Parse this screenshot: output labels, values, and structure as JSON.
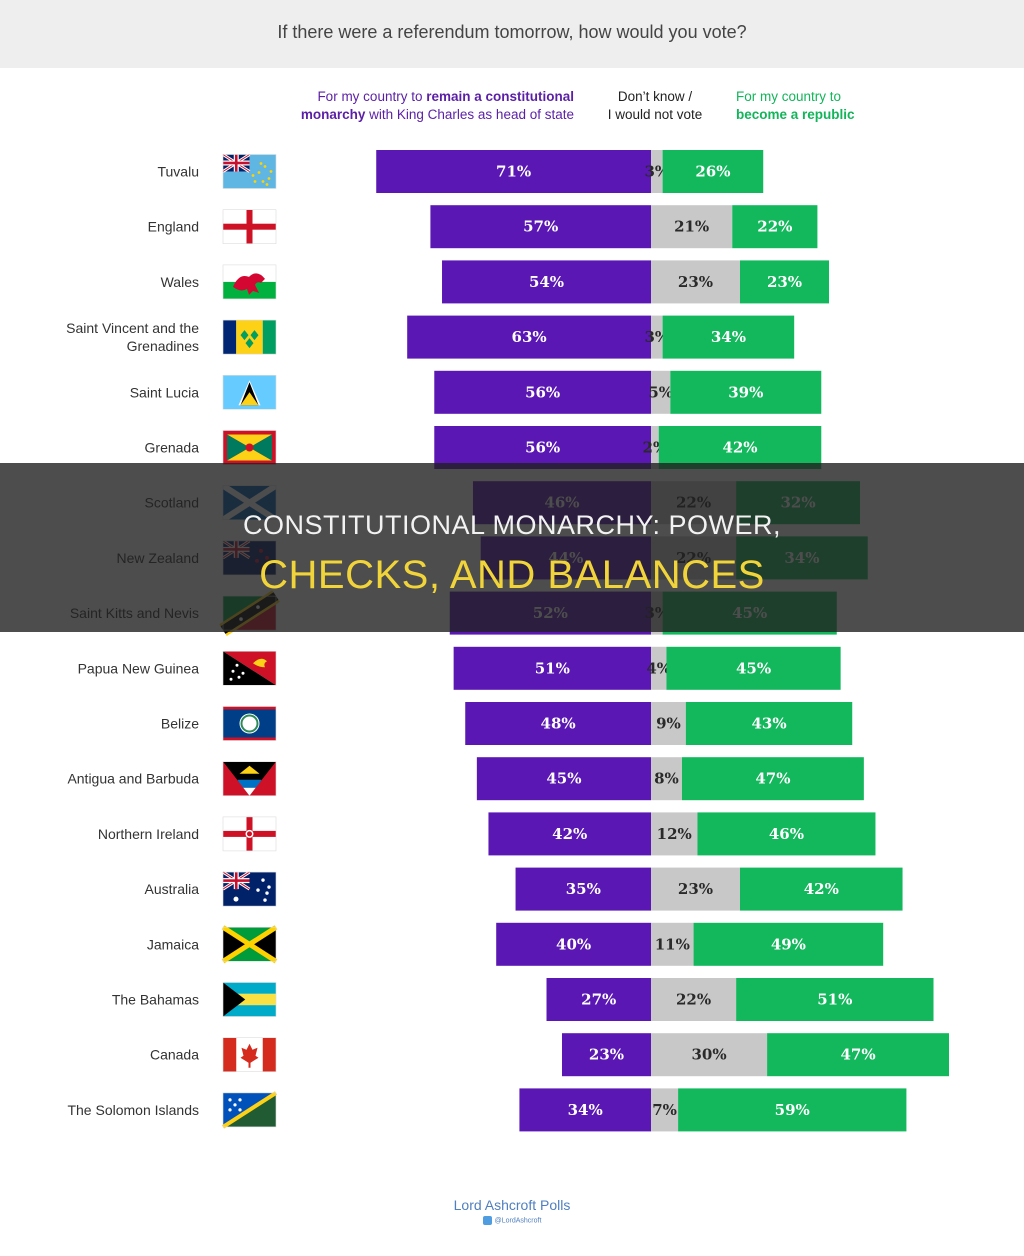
{
  "question": "If there were a referendum tomorrow, how would you vote?",
  "headers": {
    "monarchy": {
      "l1_a": "For my country to ",
      "l1_b": "remain a constitutional",
      "l2_a": "monarchy",
      "l2_b": " with King Charles as head of state"
    },
    "dont_know": {
      "l1": "Don’t know /",
      "l2": "I would not vote"
    },
    "republic": {
      "l1": "For my country to",
      "l2": "become a republic"
    }
  },
  "colors": {
    "monarchy": "#5a17b3",
    "dont_know": "#c8c8c8",
    "republic": "#12b85b"
  },
  "chart_data": {
    "type": "bar",
    "stacked": true,
    "orientation": "horizontal",
    "title": "If there were a referendum tomorrow, how would you vote?",
    "categories": [
      "Tuvalu",
      "England",
      "Wales",
      "Saint Vincent and the Grenadines",
      "Saint Lucia",
      "Grenada",
      "Scotland",
      "New Zealand",
      "Saint Kitts and Nevis",
      "Papua New Guinea",
      "Belize",
      "Antigua and Barbuda",
      "Northern Ireland",
      "Australia",
      "Jamaica",
      "The Bahamas",
      "Canada",
      "The Solomon Islands"
    ],
    "series": [
      {
        "name": "For my country to remain a constitutional monarchy with King Charles as head of state",
        "values": [
          71,
          57,
          54,
          63,
          56,
          56,
          46,
          44,
          52,
          51,
          48,
          45,
          42,
          35,
          40,
          27,
          23,
          34
        ]
      },
      {
        "name": "Don’t know / I would not vote",
        "values": [
          3,
          21,
          23,
          3,
          5,
          2,
          22,
          22,
          3,
          4,
          9,
          8,
          12,
          23,
          11,
          22,
          30,
          7
        ]
      },
      {
        "name": "For my country to become a republic",
        "values": [
          26,
          22,
          23,
          34,
          39,
          42,
          32,
          34,
          45,
          45,
          43,
          47,
          46,
          42,
          49,
          51,
          47,
          59
        ]
      }
    ],
    "labels": [
      [
        "71%",
        "3%",
        "26%"
      ],
      [
        "57%",
        "21%",
        "22%"
      ],
      [
        "54%",
        "23%",
        "23%"
      ],
      [
        "63%",
        "3%",
        "34%"
      ],
      [
        "56%",
        "5%",
        "39%"
      ],
      [
        "56%",
        "2%",
        "42%"
      ],
      [
        "46%",
        "22%",
        "32%"
      ],
      [
        "44%",
        "22%",
        "34%"
      ],
      [
        "52%",
        "3%",
        "45%"
      ],
      [
        "51%",
        "4%",
        "45%"
      ],
      [
        "48%",
        "9%",
        "43%"
      ],
      [
        "45%",
        "8%",
        "47%"
      ],
      [
        "42%",
        "12%",
        "46%"
      ],
      [
        "35%",
        "23%",
        "42%"
      ],
      [
        "40%",
        "11%",
        "49%"
      ],
      [
        "27%",
        "22%",
        "51%"
      ],
      [
        "23%",
        "30%",
        "47%"
      ],
      [
        "34%",
        "7%",
        "59%"
      ]
    ],
    "country_lines": [
      [
        "Tuvalu"
      ],
      [
        "England"
      ],
      [
        "Wales"
      ],
      [
        "Saint Vincent and the",
        "Grenadines"
      ],
      [
        "Saint Lucia"
      ],
      [
        "Grenada"
      ],
      [
        "Scotland"
      ],
      [
        "New Zealand"
      ],
      [
        "Saint Kitts and Nevis"
      ],
      [
        "Papua New Guinea"
      ],
      [
        "Belize"
      ],
      [
        "Antigua and Barbuda"
      ],
      [
        "Northern Ireland"
      ],
      [
        "Australia"
      ],
      [
        "Jamaica"
      ],
      [
        "The Bahamas"
      ],
      [
        "Canada"
      ],
      [
        "The Solomon Islands"
      ]
    ],
    "flags": [
      "tuvalu",
      "england",
      "wales",
      "svg",
      "saint-lucia",
      "grenada",
      "scotland",
      "new-zealand",
      "skn",
      "png",
      "belize",
      "antigua",
      "northern-ireland",
      "australia",
      "jamaica",
      "bahamas",
      "canada",
      "solomon"
    ],
    "grid": false,
    "legend": "top"
  },
  "source": {
    "name": "Lord Ashcroft Polls",
    "handle": "@LordAshcroft"
  },
  "overlay": {
    "line1": "CONSTITUTIONAL MONARCHY: POWER,",
    "line2": "CHECKS, AND BALANCES"
  }
}
